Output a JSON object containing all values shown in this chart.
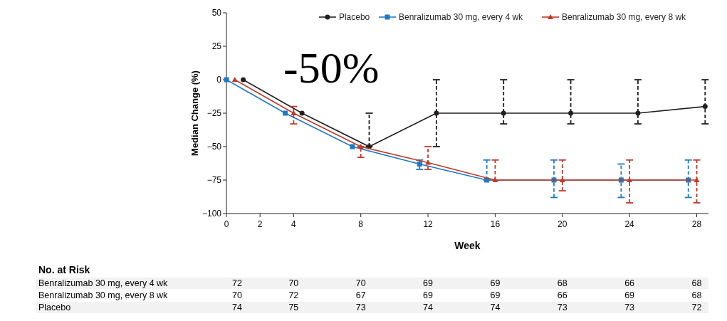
{
  "chart_data": {
    "type": "line",
    "xlabel": "Week",
    "ylabel": "Median Change (%)",
    "xlim": [
      0,
      28.7
    ],
    "xticks": [
      0,
      2,
      4,
      8,
      12,
      16,
      20,
      24,
      28
    ],
    "ylim": [
      -100,
      50
    ],
    "yticks": [
      -100,
      -75,
      -50,
      -25,
      0,
      25,
      50
    ],
    "legend": "top right",
    "grid": false,
    "series": [
      {
        "name": "Placebo",
        "color": "#231f20",
        "marker": "circle",
        "x": [
          1,
          4.5,
          8.5,
          12.5,
          16.5,
          20.5,
          24.5,
          28.5
        ],
        "values": [
          0,
          -25,
          -50,
          -25,
          -25,
          -25,
          -25,
          -20
        ],
        "errors": [
          null,
          null,
          [
            -50,
            -25
          ],
          [
            -50,
            0
          ],
          [
            -33,
            0
          ],
          [
            -33,
            0
          ],
          [
            -33,
            0
          ],
          [
            -33,
            0
          ]
        ]
      },
      {
        "name": "Benralizumab 30 mg, every 4 wk",
        "color": "#1f7bc1",
        "marker": "square",
        "x": [
          0,
          3.5,
          7.5,
          11.5,
          15.5,
          19.5,
          23.5,
          27.5
        ],
        "values": [
          0,
          -25,
          -50,
          -63,
          -75,
          -75,
          -75,
          -75
        ],
        "errors": [
          null,
          null,
          null,
          [
            -67,
            -60
          ],
          [
            -75,
            -60
          ],
          [
            -88,
            -60
          ],
          [
            -88,
            -63
          ],
          [
            -88,
            -60
          ]
        ]
      },
      {
        "name": "Benralizumab 30 mg, every 8 wk",
        "color": "#c1392b",
        "marker": "triangle",
        "x": [
          0.5,
          4,
          8,
          12,
          16,
          20,
          24,
          28
        ],
        "values": [
          0,
          -25,
          -50,
          -62,
          -75,
          -75,
          -75,
          -75
        ],
        "errors": [
          null,
          [
            -33,
            -20
          ],
          [
            -58,
            -50
          ],
          [
            -67,
            -50
          ],
          [
            -75,
            -60
          ],
          [
            -83,
            -60
          ],
          [
            -92,
            -60
          ],
          [
            -92,
            -60
          ]
        ]
      }
    ],
    "annotations": [
      "-50%",
      "No. at Risk",
      "Benralizumab 30 mg, every 4 wk",
      "72",
      "70",
      "70",
      "69",
      "69",
      "68",
      "66",
      "68",
      "Benralizumab 30 mg, every 8 wk",
      "70",
      "72",
      "67",
      "69",
      "69",
      "66",
      "69",
      "68",
      "Placebo",
      "74",
      "75",
      "73",
      "74",
      "74",
      "73",
      "73",
      "72"
    ]
  }
}
